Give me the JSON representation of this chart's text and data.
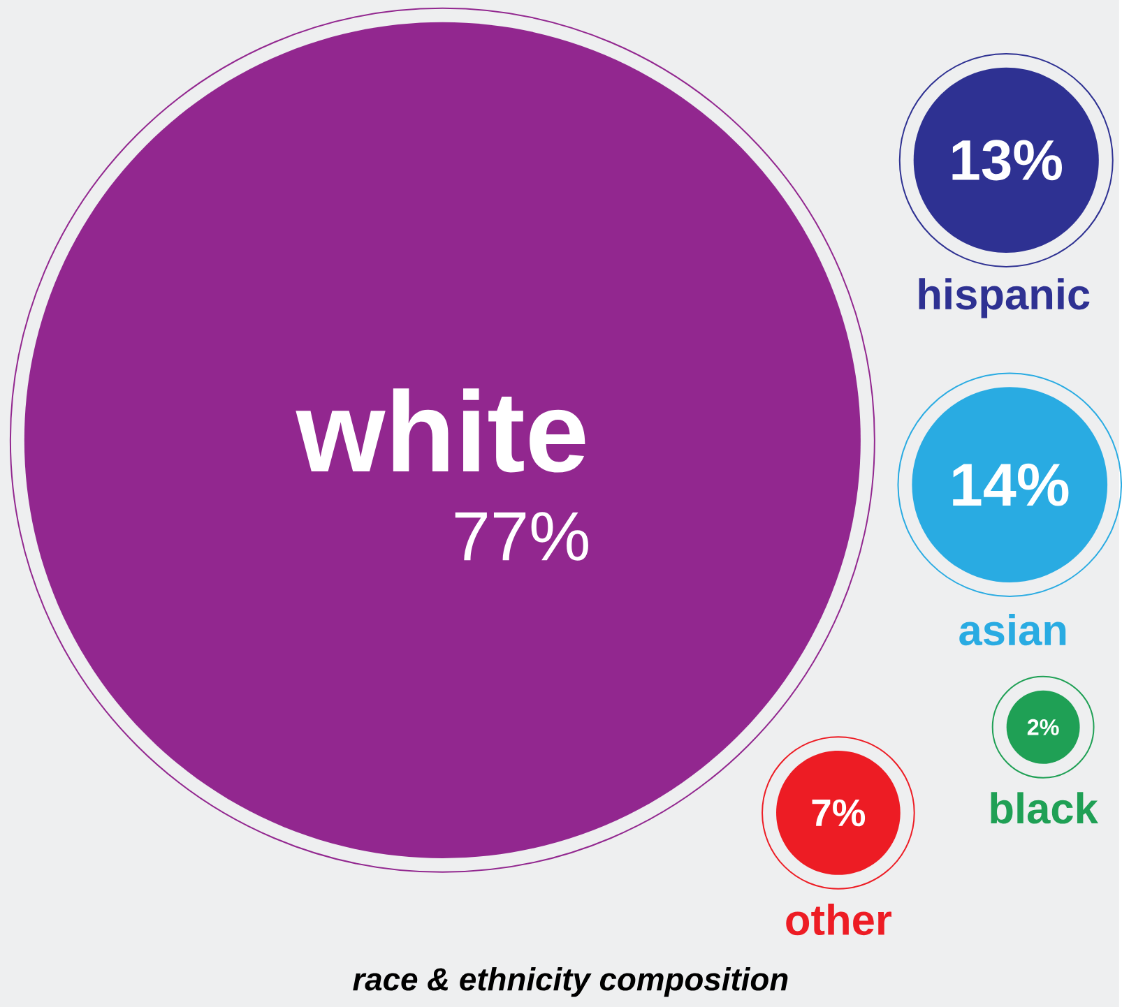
{
  "chart_data": {
    "type": "other",
    "title": "race & ethnicity composition",
    "categories": [
      "white",
      "hispanic",
      "asian",
      "black",
      "other"
    ],
    "values": [
      77,
      13,
      14,
      2,
      7
    ],
    "value_labels": [
      "77%",
      "13%",
      "14%",
      "2%",
      "7%"
    ],
    "colors": [
      "#92278f",
      "#2e3192",
      "#29abe2",
      "#1fa055",
      "#ed1c24"
    ]
  }
}
